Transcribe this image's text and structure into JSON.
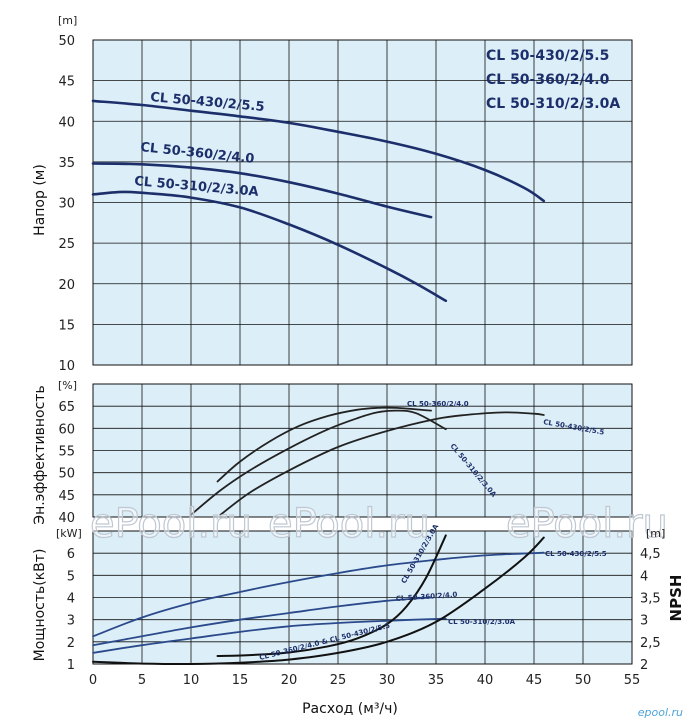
{
  "chart_data": [
    {
      "type": "line",
      "panel": "head",
      "ylabel": "Напор (м)",
      "yunit": "[m]",
      "xlim": [
        0,
        55
      ],
      "ylim": [
        10,
        50
      ],
      "yticks": [
        10,
        15,
        20,
        25,
        30,
        35,
        40,
        45,
        50
      ],
      "legend_models": [
        "CL 50-430/2/5.5",
        "CL 50-360/2/4.0",
        "CL 50-310/2/3.0A"
      ],
      "grid": true,
      "series": [
        {
          "name": "CL 50-430/2/5.5",
          "color": "#1c2f6b",
          "x": [
            0,
            5,
            10,
            15,
            20,
            25,
            30,
            35,
            40,
            44,
            46
          ],
          "y": [
            42.5,
            42.0,
            41.3,
            40.6,
            39.8,
            38.7,
            37.5,
            36.0,
            34.0,
            31.8,
            30.2
          ]
        },
        {
          "name": "CL 50-360/2/4.0",
          "color": "#1c2f6b",
          "x": [
            0,
            5,
            10,
            15,
            20,
            25,
            30,
            34.5
          ],
          "y": [
            34.8,
            34.7,
            34.3,
            33.6,
            32.5,
            31.1,
            29.5,
            28.2
          ]
        },
        {
          "name": "CL 50-310/2/3.0A",
          "color": "#1c2f6b",
          "x": [
            0,
            3,
            6,
            10,
            15,
            20,
            25,
            30,
            33,
            36
          ],
          "y": [
            31.0,
            31.3,
            31.1,
            30.6,
            29.4,
            27.3,
            24.8,
            21.9,
            20.0,
            17.9
          ]
        }
      ]
    },
    {
      "type": "line",
      "panel": "efficiency",
      "ylabel": "Эн.эффективность",
      "yunit": "[%]",
      "xlim": [
        0,
        55
      ],
      "ylim": [
        40,
        70
      ],
      "yticks": [
        40,
        45,
        50,
        55,
        60,
        65
      ],
      "grid": true,
      "series": [
        {
          "name": "CL 50-360/2/4.0",
          "color": "#222222",
          "x": [
            12.7,
            15,
            18,
            21,
            24,
            27,
            29,
            31,
            34.5
          ],
          "y": [
            48.0,
            52.5,
            57.0,
            60.5,
            62.8,
            64.2,
            64.6,
            64.6,
            64.0
          ]
        },
        {
          "name": "CL 50-310/2/3.0A",
          "color": "#222222",
          "x": [
            10,
            13,
            16,
            20,
            24,
            27,
            29,
            31,
            33,
            36
          ],
          "y": [
            40.5,
            46.0,
            50.5,
            55.5,
            59.8,
            62.3,
            63.6,
            64.0,
            63.4,
            59.8
          ]
        },
        {
          "name": "CL 50-430/2/5.5",
          "color": "#222222",
          "x": [
            13,
            16,
            20,
            25,
            30,
            35,
            38,
            42,
            45,
            46
          ],
          "y": [
            40.5,
            45.5,
            50.5,
            55.8,
            59.4,
            62.1,
            63.0,
            63.6,
            63.3,
            63.0
          ]
        }
      ]
    },
    {
      "type": "line",
      "panel": "power_npsh",
      "ylabel": "Мощность(кВт)",
      "yunit": "[kW]",
      "y2label": "NPSH",
      "y2unit": "[m]",
      "xlabel": "Расход (м³/ч)",
      "xlim": [
        0,
        55
      ],
      "xticks": [
        0,
        5,
        10,
        15,
        20,
        25,
        30,
        35,
        40,
        45,
        50,
        55
      ],
      "ylim": [
        1,
        7
      ],
      "yticks": [
        1,
        2,
        3,
        4,
        5,
        6
      ],
      "y2lim": [
        2,
        5
      ],
      "y2ticks": [
        "2",
        "2,5",
        "3",
        "3,5",
        "4",
        "4,5"
      ],
      "grid": true,
      "series": [
        {
          "name": "CL 50-430/2/5.5",
          "axis": "power",
          "color": "#2b4a8c",
          "x": [
            0,
            5,
            10,
            15,
            20,
            25,
            30,
            35,
            40,
            46
          ],
          "y": [
            2.25,
            3.1,
            3.75,
            4.25,
            4.7,
            5.1,
            5.45,
            5.7,
            5.9,
            6.02
          ]
        },
        {
          "name": "CL 50-360/2/4.0",
          "axis": "power",
          "color": "#2b4a8c",
          "x": [
            0,
            5,
            10,
            15,
            20,
            25,
            30,
            34.5
          ],
          "y": [
            1.85,
            2.25,
            2.65,
            3.0,
            3.3,
            3.6,
            3.85,
            4.0
          ]
        },
        {
          "name": "CL 50-310/2/3.0A",
          "axis": "power",
          "color": "#2b4a8c",
          "x": [
            0,
            5,
            10,
            15,
            20,
            25,
            30,
            36
          ],
          "y": [
            1.5,
            1.85,
            2.15,
            2.45,
            2.7,
            2.85,
            2.95,
            3.05
          ]
        },
        {
          "name": "CL 50-310/2/3.0A",
          "axis": "npsh",
          "color": "#111111",
          "x": [
            12.7,
            16,
            20,
            24,
            27,
            30,
            32,
            34,
            36
          ],
          "y": [
            2.18,
            2.2,
            2.26,
            2.4,
            2.58,
            2.9,
            3.3,
            3.95,
            4.9
          ]
        },
        {
          "name": "CL 50-360/2/4.0 & CL 50-430/2/5.5",
          "axis": "npsh",
          "color": "#111111",
          "x": [
            0,
            5,
            10,
            15,
            20,
            25,
            30,
            35,
            40,
            44,
            46
          ],
          "y": [
            2.05,
            2.01,
            2.0,
            2.03,
            2.1,
            2.25,
            2.5,
            2.95,
            3.7,
            4.4,
            4.85
          ]
        }
      ],
      "curve_labels": [
        {
          "text": "CL 50-430/2/5.5",
          "panel": "power_npsh"
        },
        {
          "text": "CL 50-360/2/4.0",
          "panel": "power_npsh"
        },
        {
          "text": "CL 50-310/2/3.0A",
          "panel": "power_npsh"
        },
        {
          "text": "CL 50-310/2/3.0A",
          "panel": "power_npsh"
        },
        {
          "text": "CL 50-360/2/4.0 & CL 50-430/2/5.5",
          "panel": "power_npsh"
        }
      ]
    }
  ],
  "head_labels": [
    "CL 50-430/2/5.5",
    "CL 50-360/2/4.0",
    "CL 50-310/2/3.0A"
  ],
  "eff_labels": [
    "CL 50-360/2/4.0",
    "CL 50-310/2/3.0A",
    "CL 50-430/2/5.5"
  ],
  "watermarks": [
    "ePool.ru",
    "ePool.ru",
    "ePool.ru"
  ],
  "footer_logo": "epool.ru",
  "colors": {
    "panel_bg": "#dceef7",
    "grid": "#111111",
    "head_curve": "#1c2f6b",
    "eff_curve": "#222222",
    "power_curve": "#2b4a8c",
    "npsh_curve": "#111111"
  }
}
